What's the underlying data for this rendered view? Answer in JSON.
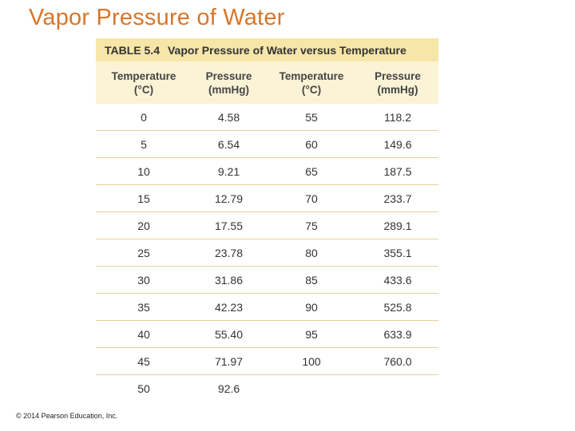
{
  "title": "Vapor Pressure of Water",
  "table": {
    "number": "TABLE 5.4",
    "caption": "Vapor Pressure of Water versus Temperature",
    "headers": [
      {
        "line1": "Temperature",
        "line2": "(°C)"
      },
      {
        "line1": "Pressure",
        "line2": "(mmHg)"
      },
      {
        "line1": "Temperature",
        "line2": "(°C)"
      },
      {
        "line1": "Pressure",
        "line2": "(mmHg)"
      }
    ],
    "rows": [
      [
        "0",
        "4.58",
        "55",
        "118.2"
      ],
      [
        "5",
        "6.54",
        "60",
        "149.6"
      ],
      [
        "10",
        "9.21",
        "65",
        "187.5"
      ],
      [
        "15",
        "12.79",
        "70",
        "233.7"
      ],
      [
        "20",
        "17.55",
        "75",
        "289.1"
      ],
      [
        "25",
        "23.78",
        "80",
        "355.1"
      ],
      [
        "30",
        "31.86",
        "85",
        "433.6"
      ],
      [
        "35",
        "42.23",
        "90",
        "525.8"
      ],
      [
        "40",
        "55.40",
        "95",
        "633.9"
      ],
      [
        "45",
        "71.97",
        "100",
        "760.0"
      ],
      [
        "50",
        "92.6",
        "",
        ""
      ]
    ]
  },
  "footer": "© 2014 Pearson Education, Inc.",
  "colors": {
    "title": "#d9762a",
    "caption_bg": "#f6e6a8",
    "header_bg": "#fbf3d6",
    "rule": "#e8cd9a"
  }
}
